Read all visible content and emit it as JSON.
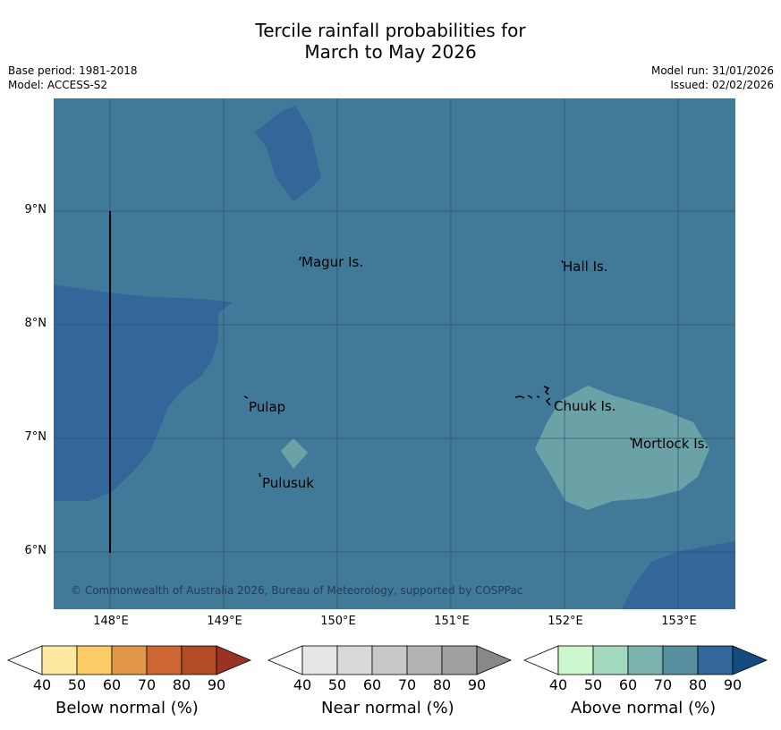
{
  "title": {
    "line1": "Tercile rainfall probabilities for",
    "line2": "March to May 2026"
  },
  "meta": {
    "base_period": "Base period: 1981-2018",
    "model": "Model: ACCESS-S2",
    "model_run": "Model run: 31/01/2026",
    "issued": "Issued: 02/02/2026"
  },
  "map": {
    "lon_ticks": [
      "148°E",
      "149°E",
      "150°E",
      "151°E",
      "152°E",
      "153°E"
    ],
    "lat_ticks": [
      "9°N",
      "8°N",
      "7°N",
      "6°N"
    ],
    "islands": {
      "magur": "Magur Is.",
      "hall": "Hall Is.",
      "pulap": "Pulap",
      "chuuk": "Chuuk Is.",
      "mortlock": "Mortlock Is.",
      "pulusuk": "Pulusuk"
    },
    "colors": {
      "background": "#417a99",
      "prob_80": "#336699",
      "prob_60_70": "#6aa2a8"
    },
    "copyright": "© Commonwealth of Australia 2026, Bureau of Meteorology, supported by COSPPac"
  },
  "legends": {
    "below": {
      "title": "Below normal (%)",
      "ticks": [
        "40",
        "50",
        "60",
        "70",
        "80",
        "90"
      ],
      "colors": [
        "#ffffff",
        "#fdeaa0",
        "#fbcc66",
        "#e19648",
        "#cd6633",
        "#b24c26",
        "#993326"
      ]
    },
    "near": {
      "title": "Near normal (%)",
      "ticks": [
        "40",
        "50",
        "60",
        "70",
        "80",
        "90"
      ],
      "colors": [
        "#ffffff",
        "#e6e6e6",
        "#d9d9d9",
        "#c8c8c8",
        "#b3b3b3",
        "#a0a0a0",
        "#888888"
      ]
    },
    "above": {
      "title": "Above normal (%)",
      "ticks": [
        "40",
        "50",
        "60",
        "70",
        "80",
        "90"
      ],
      "colors": [
        "#ffffff",
        "#ccf7cc",
        "#a3d9bf",
        "#7ab3ad",
        "#5990a0",
        "#336699",
        "#144c80"
      ]
    }
  }
}
